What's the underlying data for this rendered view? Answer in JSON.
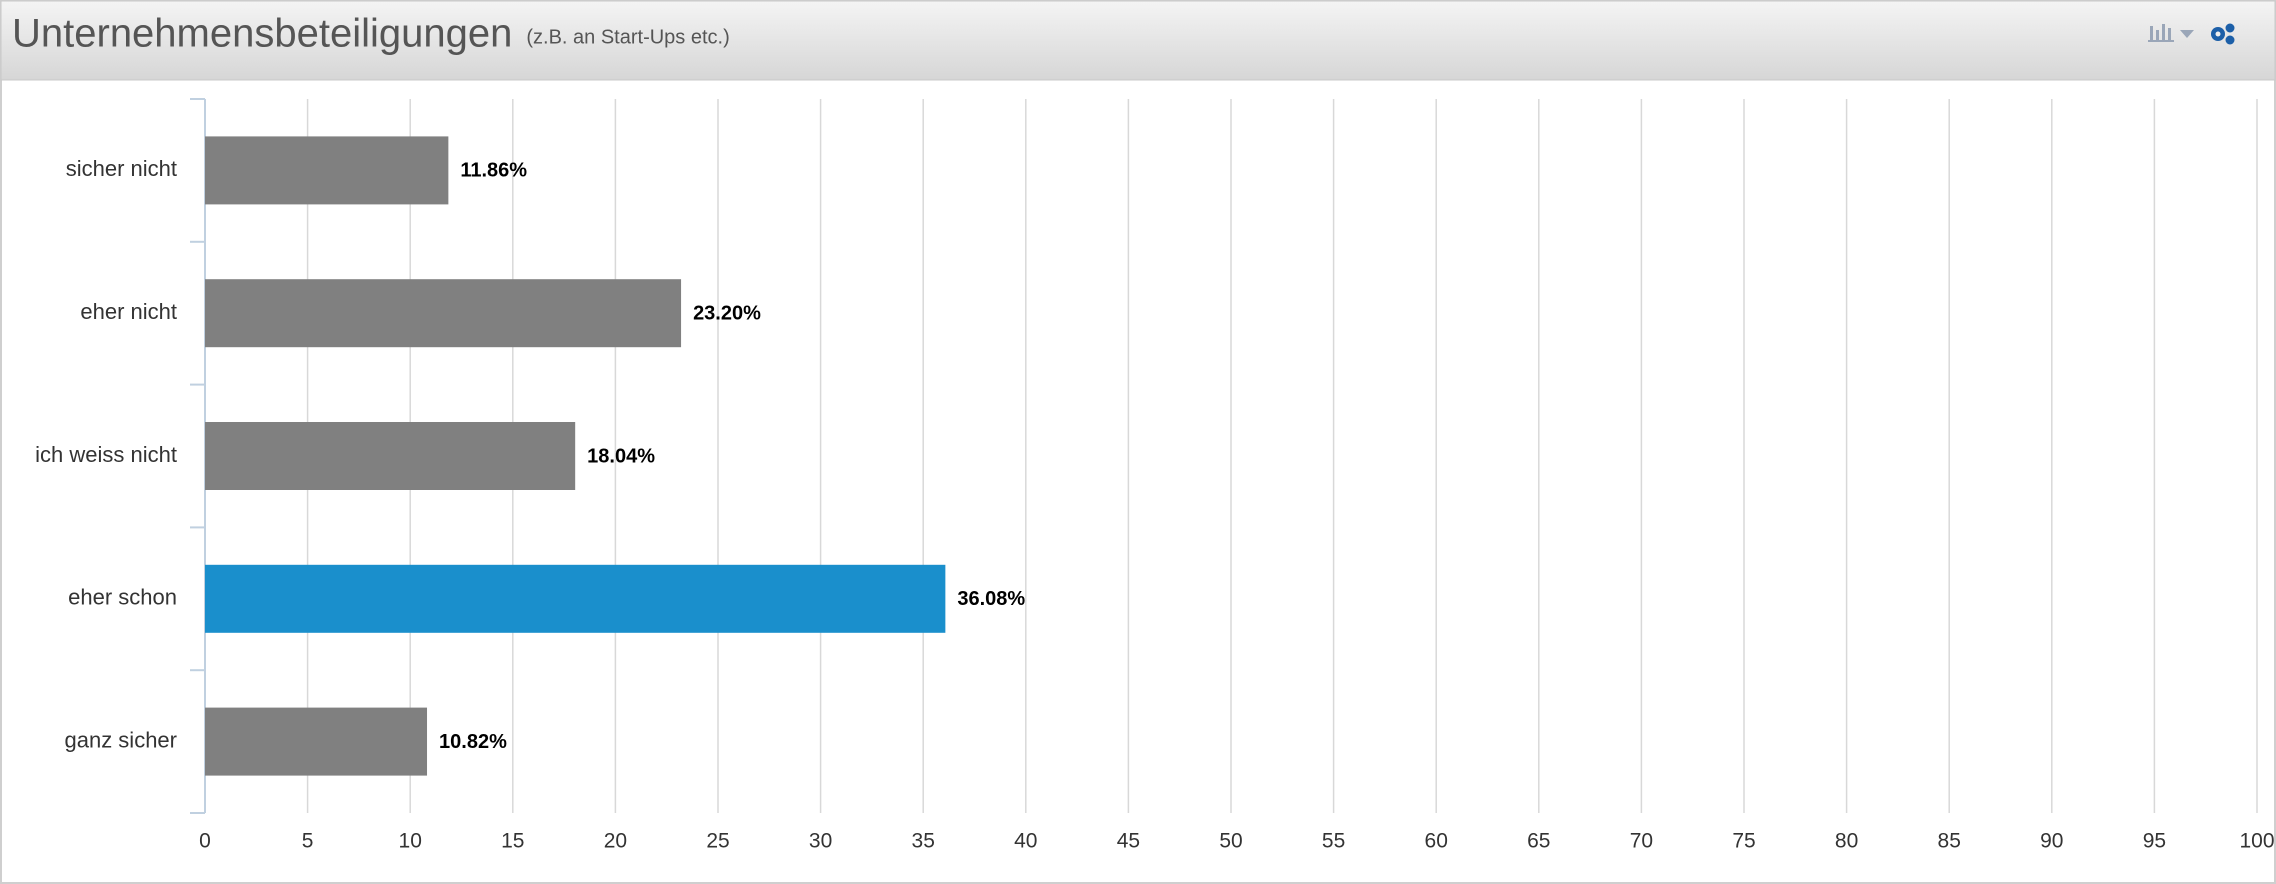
{
  "chart_data": {
    "type": "bar",
    "orientation": "horizontal",
    "title": "Unternehmensbeteiligungen",
    "subtitle": "(z.B. an Start-Ups etc.)",
    "categories": [
      "sicher nicht",
      "eher nicht",
      "ich weiss nicht",
      "eher schon",
      "ganz sicher"
    ],
    "values": [
      11.86,
      23.2,
      18.04,
      36.08,
      10.82
    ],
    "value_labels": [
      "11.86%",
      "23.20%",
      "18.04%",
      "36.08%",
      "10.82%"
    ],
    "colors": [
      "#808080",
      "#808080",
      "#808080",
      "#1a8fcc",
      "#808080"
    ],
    "xlim": [
      0,
      100
    ],
    "xticks": [
      0,
      5,
      10,
      15,
      20,
      25,
      30,
      35,
      40,
      45,
      50,
      55,
      60,
      65,
      70,
      75,
      80,
      85,
      90,
      95,
      100
    ],
    "grid": true
  }
}
